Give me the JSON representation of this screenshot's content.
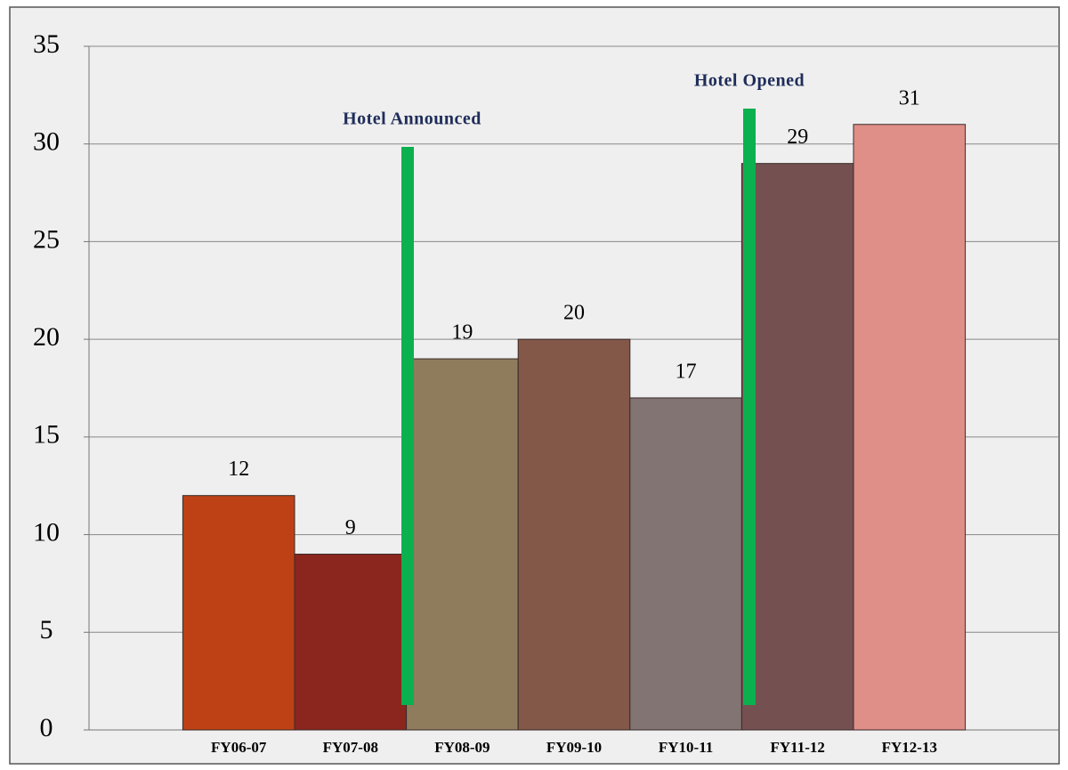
{
  "chart_data": {
    "type": "bar",
    "categories": [
      "FY06-07",
      "FY07-08",
      "FY08-09",
      "FY09-10",
      "FY10-11",
      "FY11-12",
      "FY12-13"
    ],
    "values": [
      12,
      9,
      19,
      20,
      17,
      29,
      31
    ],
    "colors": [
      "#bd4114",
      "#8a261d",
      "#8f7c5c",
      "#835849",
      "#827473",
      "#745050",
      "#df8f87"
    ],
    "ylim": [
      0,
      35
    ],
    "yticks": [
      0,
      5,
      10,
      15,
      20,
      25,
      30,
      35
    ],
    "grid": true,
    "annotations": [
      {
        "text": "Hotel Announced",
        "color": "#0bb04f"
      },
      {
        "text": "Hotel Opened",
        "color": "#0bb04f"
      }
    ]
  }
}
